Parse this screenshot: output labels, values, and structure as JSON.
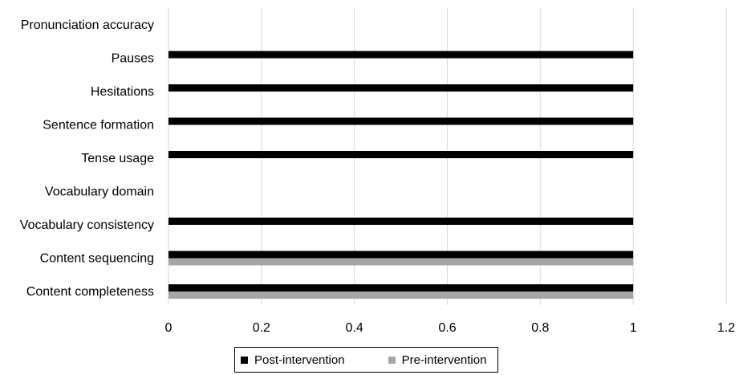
{
  "chart_data": {
    "type": "bar",
    "orientation": "horizontal",
    "categories": [
      "Pronunciation accuracy",
      "Pauses",
      "Hesitations",
      "Sentence formation",
      "Tense usage",
      "Vocabulary domain",
      "Vocabulary consistency",
      "Content sequencing",
      "Content completeness"
    ],
    "series": [
      {
        "name": "Post-intervention",
        "color": "#000000",
        "values": [
          0,
          1,
          1,
          1,
          1,
          0,
          1,
          1,
          1
        ]
      },
      {
        "name": "Pre-intervention",
        "color": "#a6a6a6",
        "values": [
          0,
          0,
          0,
          0,
          0,
          0,
          0,
          1,
          1
        ]
      }
    ],
    "xlim": [
      0,
      1.2
    ],
    "x_ticks": [
      "0",
      "0.2",
      "0.4",
      "0.6",
      "0.8",
      "1",
      "1.2"
    ],
    "title": "",
    "xlabel": "",
    "ylabel": "",
    "grid": "vertical",
    "legend": "bottom",
    "gridline_color": "#d9d9d9"
  }
}
